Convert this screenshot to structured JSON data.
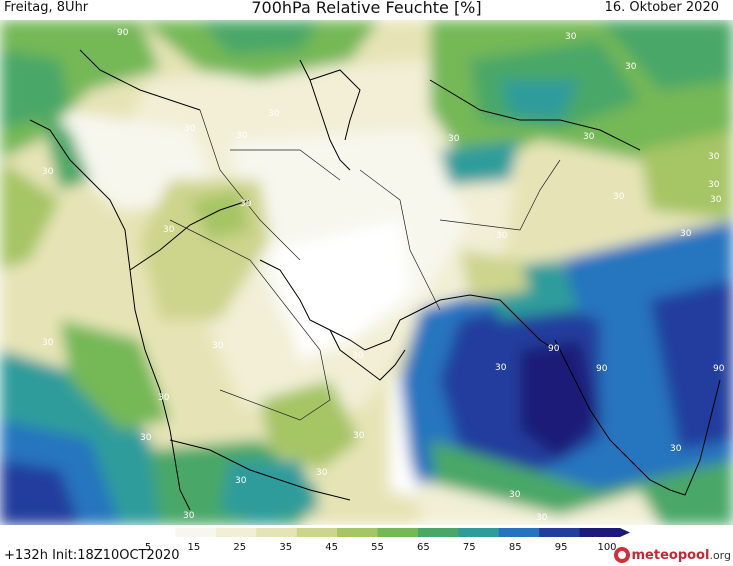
{
  "header": {
    "valid_time": "Freitag, 8Uhr",
    "title": "700hPa Relative Feuchte [%]",
    "date": "16. Oktober 2020"
  },
  "footer": {
    "run_info": "+132h  Init:18Z10OCT2020",
    "logo_brand": "meteopool",
    "logo_tld": ".org"
  },
  "legend": {
    "ticks": [
      "5",
      "15",
      "25",
      "35",
      "45",
      "55",
      "65",
      "75",
      "85",
      "95",
      "100"
    ],
    "colors": [
      "#ffffff",
      "#f7f7ee",
      "#f2efd6",
      "#e6e4b6",
      "#cdd48c",
      "#a6c565",
      "#74b857",
      "#4aa767",
      "#2e9c9b",
      "#2674bf",
      "#223d9d",
      "#1b1a78"
    ]
  },
  "map": {
    "contour_labels": [
      "90",
      "90",
      "90",
      "90",
      "30",
      "30",
      "30",
      "30",
      "30",
      "30",
      "30",
      "30",
      "30",
      "30",
      "30",
      "30",
      "30",
      "30",
      "30",
      "30",
      "30",
      "30",
      "30",
      "30",
      "30",
      "30",
      "30",
      "30",
      "30",
      "30",
      "30",
      "30",
      "30"
    ]
  }
}
